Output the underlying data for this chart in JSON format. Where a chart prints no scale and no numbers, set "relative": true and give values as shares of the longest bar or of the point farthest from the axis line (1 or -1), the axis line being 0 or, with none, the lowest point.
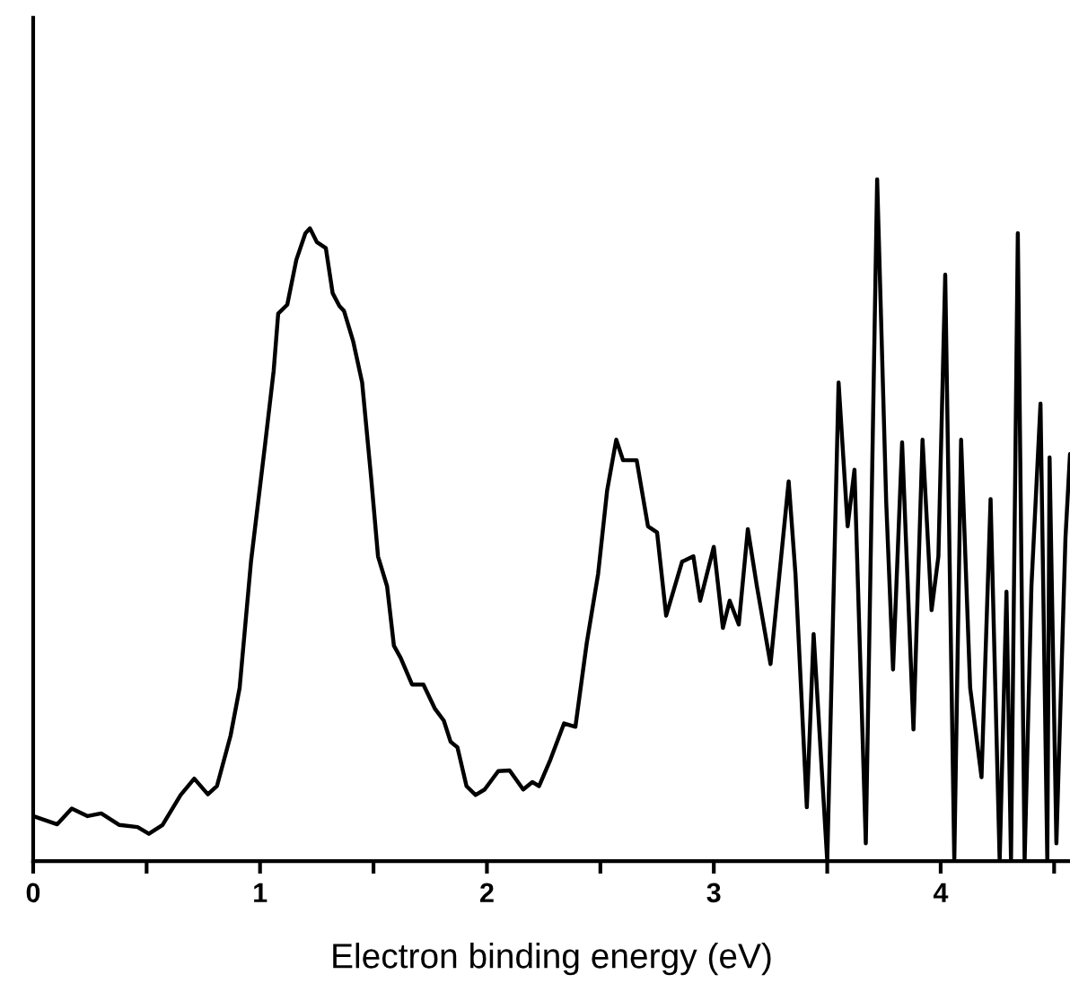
{
  "chart_data": {
    "type": "line",
    "relative": true,
    "xlabel": "Electron binding energy (eV)",
    "xlim": [
      0,
      4.57
    ],
    "xticks": [
      0,
      {
        "value": 0.5,
        "label": null
      },
      1,
      {
        "value": 1.5,
        "label": null
      },
      2,
      {
        "value": 2.5,
        "label": null
      },
      3,
      {
        "value": 3.5,
        "label": null
      },
      4,
      {
        "value": 4.5,
        "label": null
      }
    ],
    "tick_labels": "x",
    "grid": false,
    "legend": false,
    "marker": "none",
    "line_style": "solid",
    "series": [
      {
        "color": "#000000",
        "x": [
          0,
          0.106,
          0.17,
          0.24,
          0.3,
          0.38,
          0.46,
          0.51,
          0.57,
          0.65,
          0.71,
          0.77,
          0.81,
          0.87,
          0.91,
          0.96,
          1.02,
          1.06,
          1.08,
          1.12,
          1.16,
          1.2,
          1.22,
          1.25,
          1.29,
          1.32,
          1.35,
          1.37,
          1.41,
          1.45,
          1.49,
          1.52,
          1.56,
          1.59,
          1.62,
          1.67,
          1.72,
          1.77,
          1.81,
          1.84,
          1.87,
          1.91,
          1.95,
          1.99,
          2.05,
          2.1,
          2.16,
          2.2,
          2.23,
          2.28,
          2.34,
          2.39,
          2.44,
          2.49,
          2.53,
          2.57,
          2.6,
          2.66,
          2.71,
          2.75,
          2.79,
          2.86,
          2.91,
          2.94,
          3.0,
          3.04,
          3.07,
          3.11,
          3.15,
          3.19,
          3.25,
          3.33,
          3.36,
          3.41,
          3.44,
          3.5,
          3.55,
          3.59,
          3.62,
          3.67,
          3.72,
          3.76,
          3.79,
          3.83,
          3.88,
          3.92,
          3.96,
          3.99,
          4.02,
          4.06,
          4.09,
          4.13,
          4.18,
          4.22,
          4.26,
          4.29,
          4.31,
          4.34,
          4.37,
          4.4,
          4.44,
          4.47,
          4.48,
          4.51,
          4.55,
          4.57
        ],
        "values": [
          0.066,
          0.054,
          0.077,
          0.066,
          0.07,
          0.053,
          0.05,
          0.04,
          0.053,
          0.097,
          0.121,
          0.098,
          0.11,
          0.184,
          0.254,
          0.439,
          0.605,
          0.719,
          0.803,
          0.816,
          0.882,
          0.921,
          0.928,
          0.908,
          0.899,
          0.833,
          0.814,
          0.807,
          0.763,
          0.702,
          0.561,
          0.447,
          0.403,
          0.316,
          0.298,
          0.259,
          0.259,
          0.224,
          0.206,
          0.175,
          0.167,
          0.11,
          0.097,
          0.105,
          0.132,
          0.133,
          0.105,
          0.116,
          0.11,
          0.149,
          0.202,
          0.197,
          0.32,
          0.421,
          0.544,
          0.618,
          0.588,
          0.588,
          0.491,
          0.482,
          0.36,
          0.439,
          0.447,
          0.382,
          0.461,
          0.342,
          0.382,
          0.347,
          0.487,
          0.403,
          0.289,
          0.557,
          0.421,
          0.079,
          0.333,
          0,
          0.702,
          0.491,
          0.574,
          0.026,
          1.0,
          0.526,
          0.281,
          0.614,
          0.193,
          0.618,
          0.368,
          0.447,
          0.86,
          0,
          0.618,
          0.254,
          0.123,
          0.531,
          0,
          0.395,
          0,
          0.921,
          0,
          0.403,
          0.671,
          0,
          0.592,
          0.026,
          0.474,
          0.597
        ]
      }
    ]
  }
}
